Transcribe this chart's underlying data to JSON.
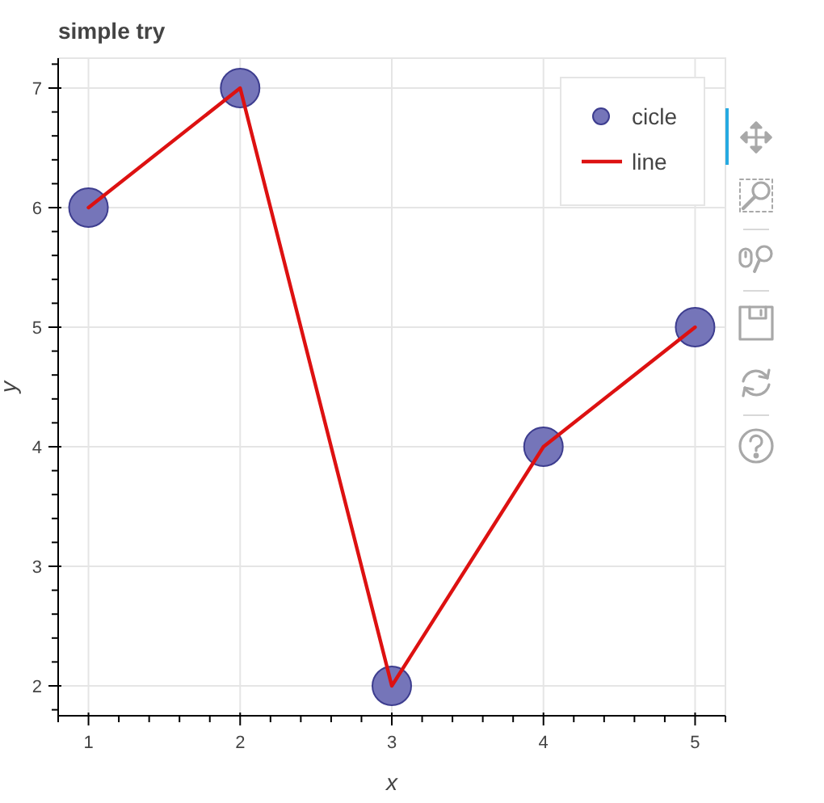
{
  "chart_data": {
    "type": "line",
    "title": "simple try",
    "xlabel": "x",
    "ylabel": "y",
    "x": [
      1,
      2,
      3,
      4,
      5
    ],
    "series": [
      {
        "name": "cicle",
        "type": "scatter",
        "marker": "circle",
        "color": "#7575b9",
        "values": [
          6,
          7,
          2,
          4,
          5
        ]
      },
      {
        "name": "line",
        "color": "#dd1111",
        "values": [
          6,
          7,
          2,
          4,
          5
        ]
      }
    ],
    "xlim": [
      0.8,
      5.2
    ],
    "ylim": [
      1.75,
      7.25
    ],
    "xticks": [
      {
        "value": 0.8,
        "label": null
      },
      1,
      {
        "value": 1.2,
        "label": null
      },
      {
        "value": 1.4,
        "label": null
      },
      {
        "value": 1.6,
        "label": null
      },
      {
        "value": 1.8,
        "label": null
      },
      2,
      {
        "value": 2.2,
        "label": null
      },
      {
        "value": 2.4,
        "label": null
      },
      {
        "value": 2.6,
        "label": null
      },
      {
        "value": 2.8,
        "label": null
      },
      3,
      {
        "value": 3.2,
        "label": null
      },
      {
        "value": 3.4,
        "label": null
      },
      {
        "value": 3.6,
        "label": null
      },
      {
        "value": 3.8,
        "label": null
      },
      4,
      {
        "value": 4.2,
        "label": null
      },
      {
        "value": 4.4,
        "label": null
      },
      {
        "value": 4.6,
        "label": null
      },
      {
        "value": 4.8,
        "label": null
      },
      5,
      {
        "value": 5.2,
        "label": null
      }
    ],
    "yticks": [
      {
        "value": 1.8,
        "label": null
      },
      2,
      {
        "value": 2.2,
        "label": null
      },
      {
        "value": 2.4,
        "label": null
      },
      {
        "value": 2.6,
        "label": null
      },
      {
        "value": 2.8,
        "label": null
      },
      3,
      {
        "value": 3.2,
        "label": null
      },
      {
        "value": 3.4,
        "label": null
      },
      {
        "value": 3.6,
        "label": null
      },
      {
        "value": 3.8,
        "label": null
      },
      4,
      {
        "value": 4.2,
        "label": null
      },
      {
        "value": 4.4,
        "label": null
      },
      {
        "value": 4.6,
        "label": null
      },
      {
        "value": 4.8,
        "label": null
      },
      5,
      {
        "value": 5.2,
        "label": null
      },
      {
        "value": 5.4,
        "label": null
      },
      {
        "value": 5.6,
        "label": null
      },
      {
        "value": 5.8,
        "label": null
      },
      6,
      {
        "value": 6.2,
        "label": null
      },
      {
        "value": 6.4,
        "label": null
      },
      {
        "value": 6.6,
        "label": null
      },
      {
        "value": 6.8,
        "label": null
      },
      7,
      {
        "value": 7.2,
        "label": null
      }
    ],
    "grid": true,
    "legend": "top right",
    "line_style": "solid"
  }
}
